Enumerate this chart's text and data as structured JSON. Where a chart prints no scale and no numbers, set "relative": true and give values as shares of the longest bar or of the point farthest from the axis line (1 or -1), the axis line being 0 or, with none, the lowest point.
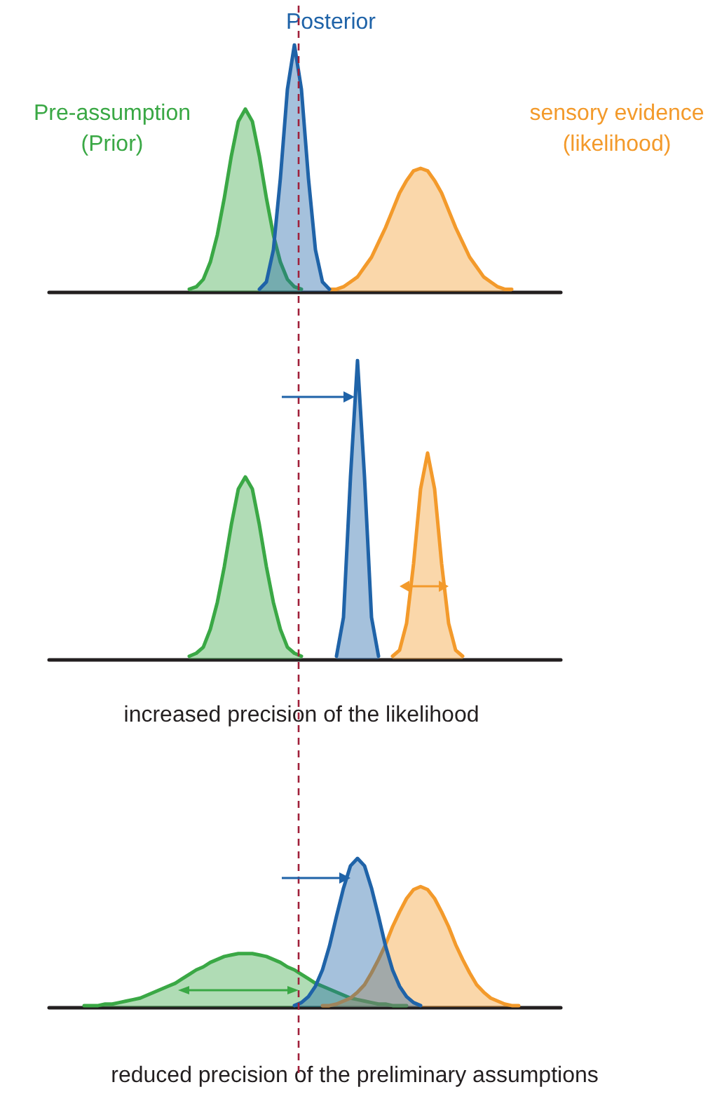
{
  "chart_data": [
    {
      "type": "area",
      "relative": true,
      "tick_labels": false,
      "categories": [
        null,
        null,
        null,
        null,
        null,
        null,
        null,
        null,
        null,
        null,
        null,
        null,
        null,
        null,
        null,
        null,
        null,
        null,
        null,
        null,
        null,
        null,
        null,
        null,
        null,
        null,
        null,
        null,
        null,
        null,
        null,
        null,
        null,
        null,
        null,
        null,
        null,
        null,
        null,
        null,
        null,
        null,
        null,
        null,
        null,
        null,
        null,
        null,
        null,
        null,
        null,
        null,
        null,
        null,
        null,
        null,
        null,
        null,
        null,
        null,
        null,
        null,
        null,
        null,
        null,
        null,
        null,
        null,
        null,
        null,
        null,
        null,
        null,
        null
      ],
      "series": [
        {
          "name": "Pre-assumption\n(Prior)",
          "color": "#3aa845",
          "values": [
            null,
            null,
            null,
            null,
            null,
            null,
            null,
            null,
            null,
            null,
            null,
            null,
            null,
            null,
            null,
            null,
            null,
            null,
            null,
            null,
            0.01,
            0.02,
            0.05,
            0.12,
            0.23,
            0.38,
            0.55,
            0.69,
            0.74,
            0.69,
            0.55,
            0.38,
            0.23,
            0.12,
            0.05,
            0.02,
            0.01,
            null,
            null,
            null,
            null,
            null,
            null,
            null,
            null,
            null,
            null,
            null,
            null,
            null,
            null,
            null,
            null,
            null,
            null,
            null,
            null,
            null,
            null,
            null,
            null,
            null,
            null,
            null,
            null,
            null,
            null,
            null,
            null,
            null,
            null,
            null,
            null,
            null
          ]
        },
        {
          "name": "sensory evidence\n(likelihood)",
          "color": "#f39a2b",
          "values": [
            null,
            null,
            null,
            null,
            null,
            null,
            null,
            null,
            null,
            null,
            null,
            null,
            null,
            null,
            null,
            null,
            null,
            null,
            null,
            null,
            null,
            null,
            null,
            null,
            null,
            null,
            null,
            null,
            null,
            null,
            null,
            null,
            null,
            null,
            null,
            null,
            null,
            null,
            null,
            null,
            0.01,
            0.01,
            0.02,
            0.04,
            0.06,
            0.1,
            0.14,
            0.2,
            0.26,
            0.33,
            0.4,
            0.45,
            0.49,
            0.5,
            0.49,
            0.45,
            0.4,
            0.33,
            0.26,
            0.2,
            0.14,
            0.1,
            0.06,
            0.04,
            0.02,
            0.01,
            0.01,
            null,
            null,
            null,
            null,
            null,
            null,
            null
          ]
        },
        {
          "name": "Posterior",
          "color": "#1f63a8",
          "values": [
            null,
            null,
            null,
            null,
            null,
            null,
            null,
            null,
            null,
            null,
            null,
            null,
            null,
            null,
            null,
            null,
            null,
            null,
            null,
            null,
            null,
            null,
            null,
            null,
            null,
            null,
            null,
            null,
            null,
            null,
            0.01,
            0.04,
            0.17,
            0.46,
            0.82,
            1,
            0.82,
            0.46,
            0.17,
            0.04,
            0.01,
            null,
            null,
            null,
            null,
            null,
            null,
            null,
            null,
            null,
            null,
            null,
            null,
            null,
            null,
            null,
            null,
            null,
            null,
            null,
            null,
            null,
            null,
            null,
            null,
            null,
            null,
            null,
            null,
            null,
            null,
            null,
            null,
            null
          ]
        }
      ]
    },
    {
      "type": "area",
      "relative": true,
      "tick_labels": false,
      "categories": [
        null,
        null,
        null,
        null,
        null,
        null,
        null,
        null,
        null,
        null,
        null,
        null,
        null,
        null,
        null,
        null,
        null,
        null,
        null,
        null,
        null,
        null,
        null,
        null,
        null,
        null,
        null,
        null,
        null,
        null,
        null,
        null,
        null,
        null,
        null,
        null,
        null,
        null,
        null,
        null,
        null,
        null,
        null,
        null,
        null,
        null,
        null,
        null,
        null,
        null,
        null,
        null,
        null,
        null,
        null,
        null,
        null,
        null,
        null,
        null,
        null,
        null,
        null,
        null,
        null,
        null,
        null,
        null,
        null,
        null,
        null,
        null,
        null,
        null
      ],
      "series": [
        {
          "color": "#3aa845",
          "values": [
            null,
            null,
            null,
            null,
            null,
            null,
            null,
            null,
            null,
            null,
            null,
            null,
            null,
            null,
            null,
            null,
            null,
            null,
            null,
            null,
            0.01,
            0.02,
            0.04,
            0.1,
            0.19,
            0.31,
            0.45,
            0.57,
            0.61,
            0.57,
            0.45,
            0.31,
            0.19,
            0.1,
            0.04,
            0.02,
            0.01,
            null,
            null,
            null,
            null,
            null,
            null,
            null,
            null,
            null,
            null,
            null,
            null,
            null,
            null,
            null,
            null,
            null,
            null,
            null,
            null,
            null,
            null,
            null,
            null,
            null,
            null,
            null,
            null,
            null,
            null,
            null,
            null,
            null,
            null,
            null,
            null,
            null
          ]
        },
        {
          "color": "#f39a2b",
          "values": [
            null,
            null,
            null,
            null,
            null,
            null,
            null,
            null,
            null,
            null,
            null,
            null,
            null,
            null,
            null,
            null,
            null,
            null,
            null,
            null,
            null,
            null,
            null,
            null,
            null,
            null,
            null,
            null,
            null,
            null,
            null,
            null,
            null,
            null,
            null,
            null,
            null,
            null,
            null,
            null,
            null,
            null,
            null,
            null,
            null,
            null,
            null,
            null,
            null,
            0.01,
            0.03,
            0.12,
            0.32,
            0.57,
            0.69,
            0.57,
            0.32,
            0.12,
            0.03,
            0.01,
            null,
            null,
            null,
            null,
            null,
            null,
            null,
            null,
            null,
            null,
            null,
            null,
            null,
            null
          ]
        },
        {
          "color": "#1f63a8",
          "values": [
            null,
            null,
            null,
            null,
            null,
            null,
            null,
            null,
            null,
            null,
            null,
            null,
            null,
            null,
            null,
            null,
            null,
            null,
            null,
            null,
            null,
            null,
            null,
            null,
            null,
            null,
            null,
            null,
            null,
            null,
            null,
            null,
            null,
            null,
            null,
            null,
            null,
            null,
            null,
            null,
            null,
            0.01,
            0.14,
            0.61,
            1,
            0.61,
            0.14,
            0.01,
            null,
            null,
            null,
            null,
            null,
            null,
            null,
            null,
            null,
            null,
            null,
            null,
            null,
            null,
            null,
            null,
            null,
            null,
            null,
            null,
            null,
            null,
            null,
            null,
            null,
            null
          ]
        }
      ],
      "annotations": [
        "increased precision of the likelihood"
      ]
    },
    {
      "type": "area",
      "relative": true,
      "tick_labels": false,
      "categories": [
        null,
        null,
        null,
        null,
        null,
        null,
        null,
        null,
        null,
        null,
        null,
        null,
        null,
        null,
        null,
        null,
        null,
        null,
        null,
        null,
        null,
        null,
        null,
        null,
        null,
        null,
        null,
        null,
        null,
        null,
        null,
        null,
        null,
        null,
        null,
        null,
        null,
        null,
        null,
        null,
        null,
        null,
        null,
        null,
        null,
        null,
        null,
        null,
        null,
        null,
        null,
        null,
        null,
        null,
        null,
        null,
        null,
        null,
        null,
        null,
        null,
        null,
        null,
        null,
        null,
        null,
        null,
        null,
        null,
        null,
        null,
        null,
        null,
        null
      ],
      "series": [
        {
          "color": "#3aa845",
          "values": [
            null,
            null,
            null,
            null,
            null,
            0.01,
            0.01,
            0.01,
            0.02,
            0.02,
            0.03,
            0.04,
            0.05,
            0.06,
            0.08,
            0.1,
            0.12,
            0.14,
            0.16,
            0.19,
            0.22,
            0.25,
            0.27,
            0.3,
            0.32,
            0.34,
            0.35,
            0.36,
            0.36,
            0.36,
            0.35,
            0.34,
            0.32,
            0.3,
            0.27,
            0.25,
            0.22,
            0.19,
            0.16,
            0.14,
            0.12,
            0.1,
            0.08,
            0.06,
            0.05,
            0.04,
            0.03,
            0.02,
            0.02,
            0.01,
            0.01,
            0.01,
            null,
            null,
            null,
            null,
            null,
            null,
            null,
            null,
            null,
            null,
            null,
            null,
            null,
            null,
            null,
            null,
            null,
            null,
            null,
            null,
            null,
            null
          ]
        },
        {
          "color": "#f39a2b",
          "values": [
            null,
            null,
            null,
            null,
            null,
            null,
            null,
            null,
            null,
            null,
            null,
            null,
            null,
            null,
            null,
            null,
            null,
            null,
            null,
            null,
            null,
            null,
            null,
            null,
            null,
            null,
            null,
            null,
            null,
            null,
            null,
            null,
            null,
            null,
            null,
            null,
            null,
            null,
            null,
            0.01,
            0.01,
            0.02,
            0.04,
            0.06,
            0.1,
            0.15,
            0.23,
            0.32,
            0.42,
            0.54,
            0.64,
            0.73,
            0.79,
            0.81,
            0.79,
            0.73,
            0.64,
            0.54,
            0.42,
            0.32,
            0.23,
            0.15,
            0.1,
            0.06,
            0.04,
            0.02,
            0.01,
            0.01,
            null,
            null,
            null,
            null,
            null,
            null
          ]
        },
        {
          "color": "#1f63a8",
          "values": [
            null,
            null,
            null,
            null,
            null,
            null,
            null,
            null,
            null,
            null,
            null,
            null,
            null,
            null,
            null,
            null,
            null,
            null,
            null,
            null,
            null,
            null,
            null,
            null,
            null,
            null,
            null,
            null,
            null,
            null,
            null,
            null,
            null,
            null,
            null,
            0.01,
            0.03,
            0.07,
            0.14,
            0.25,
            0.41,
            0.61,
            0.8,
            0.95,
            1,
            0.95,
            0.8,
            0.61,
            0.41,
            0.25,
            0.14,
            0.07,
            0.03,
            0.01,
            null,
            null,
            null,
            null,
            null,
            null,
            null,
            null,
            null,
            null,
            null,
            null,
            null,
            null,
            null,
            null,
            null,
            null,
            null,
            null
          ]
        }
      ],
      "annotations": [
        "reduced precision of the preliminary assumptions"
      ]
    }
  ]
}
